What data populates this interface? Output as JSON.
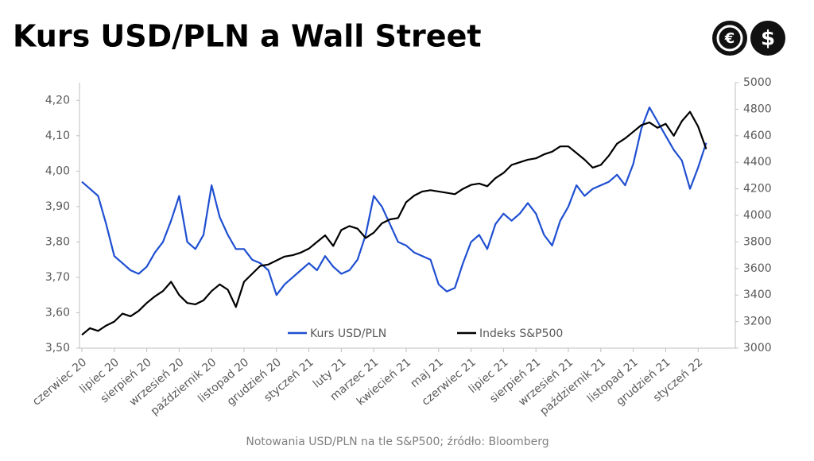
{
  "chart_data": {
    "type": "line",
    "title": "Kurs USD/PLN a Wall Street",
    "source": "Notowania USD/PLN na tle S&P500; źródło: Bloomberg",
    "categories": [
      "czerwiec 20",
      null,
      null,
      null,
      "lipiec 20",
      null,
      null,
      null,
      "sierpień 20",
      null,
      null,
      null,
      "wrzesień 20",
      null,
      null,
      null,
      "październik 20",
      null,
      null,
      null,
      "listopad 20",
      null,
      null,
      null,
      "grudzień 20",
      null,
      null,
      null,
      "styczeń 21",
      null,
      null,
      null,
      "luty 21",
      null,
      null,
      null,
      "marzec 21",
      null,
      null,
      null,
      "kwiecień 21",
      null,
      null,
      null,
      "maj 21",
      null,
      null,
      null,
      "czerwiec 21",
      null,
      null,
      null,
      "lipiec 21",
      null,
      null,
      null,
      "sierpień 21",
      null,
      null,
      null,
      "wrzesień 21",
      null,
      null,
      null,
      "październik 21",
      null,
      null,
      null,
      "listopad 21",
      null,
      null,
      null,
      "grudzień 21",
      null,
      null,
      null,
      "styczeń 22",
      null
    ],
    "series": [
      {
        "name": "Kurs USD/PLN",
        "color": "#1f4fd1",
        "axis": "y",
        "values": [
          3.97,
          3.95,
          3.93,
          3.85,
          3.76,
          3.74,
          3.72,
          3.71,
          3.73,
          3.77,
          3.8,
          3.86,
          3.93,
          3.8,
          3.78,
          3.82,
          3.96,
          3.87,
          3.82,
          3.78,
          3.78,
          3.75,
          3.74,
          3.72,
          3.65,
          3.68,
          3.7,
          3.72,
          3.74,
          3.72,
          3.76,
          3.73,
          3.71,
          3.72,
          3.75,
          3.82,
          3.93,
          3.9,
          3.85,
          3.8,
          3.79,
          3.77,
          3.76,
          3.75,
          3.68,
          3.66,
          3.67,
          3.74,
          3.8,
          3.82,
          3.78,
          3.85,
          3.88,
          3.86,
          3.88,
          3.91,
          3.88,
          3.82,
          3.79,
          3.86,
          3.9,
          3.96,
          3.93,
          3.95,
          3.96,
          3.97,
          3.99,
          3.96,
          4.02,
          4.12,
          4.18,
          4.14,
          4.1,
          4.06,
          4.03,
          3.95,
          4.01,
          4.08
        ]
      },
      {
        "name": "Indeks S&P500",
        "color": "#000000",
        "axis": "y2",
        "values": [
          3100,
          3150,
          3130,
          3170,
          3200,
          3260,
          3240,
          3280,
          3340,
          3390,
          3430,
          3500,
          3400,
          3340,
          3330,
          3360,
          3430,
          3480,
          3440,
          3310,
          3500,
          3560,
          3620,
          3630,
          3660,
          3690,
          3700,
          3720,
          3750,
          3800,
          3850,
          3770,
          3890,
          3920,
          3900,
          3830,
          3870,
          3940,
          3970,
          3980,
          4100,
          4150,
          4180,
          4190,
          4180,
          4170,
          4160,
          4200,
          4230,
          4240,
          4220,
          4280,
          4320,
          4380,
          4400,
          4420,
          4430,
          4460,
          4480,
          4520,
          4520,
          4470,
          4420,
          4360,
          4380,
          4450,
          4540,
          4580,
          4630,
          4680,
          4700,
          4660,
          4690,
          4600,
          4710,
          4780,
          4670,
          4500
        ]
      }
    ],
    "ylim": [
      3.5,
      4.25
    ],
    "yticks": [
      {
        "value": 3.5,
        "label": "3,50"
      },
      {
        "value": 3.6,
        "label": "3,60"
      },
      {
        "value": 3.7,
        "label": "3,70"
      },
      {
        "value": 3.8,
        "label": "3,80"
      },
      {
        "value": 3.9,
        "label": "3,90"
      },
      {
        "value": 4.0,
        "label": "4,00"
      },
      {
        "value": 4.1,
        "label": "4,10"
      },
      {
        "value": 4.2,
        "label": "4,20"
      }
    ],
    "y2lim": [
      3000,
      5000
    ],
    "y2ticks": [
      3000,
      3200,
      3400,
      3600,
      3800,
      4000,
      4200,
      4400,
      4600,
      4800,
      5000
    ],
    "legend": "bottom"
  },
  "logo": {
    "symbols": [
      "€",
      "$"
    ]
  }
}
